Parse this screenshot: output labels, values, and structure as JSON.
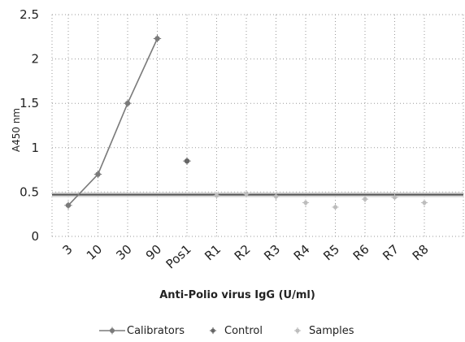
{
  "chart_data": {
    "type": "scatter",
    "categories": [
      "3",
      "10",
      "30",
      "90",
      "Pos1",
      "R1",
      "R2",
      "R3",
      "R4",
      "R5",
      "R6",
      "R7",
      "R8"
    ],
    "ylabel": "A450 nm",
    "xlabel": "Anti-Polio virus IgG (U/ml)",
    "ylim": [
      0,
      2.5
    ],
    "yticks": [
      "0",
      "0.5",
      "1",
      "1.5",
      "2",
      "2.5"
    ],
    "grid": true,
    "legend_position": "bottom",
    "cutoff": 0.47,
    "series": [
      {
        "name": "Calibrators",
        "style": "line-marker",
        "color": "#7a7a7a",
        "points": [
          {
            "x": "3",
            "y": 0.35
          },
          {
            "x": "10",
            "y": 0.7
          },
          {
            "x": "30",
            "y": 1.5
          },
          {
            "x": "90",
            "y": 2.23
          }
        ]
      },
      {
        "name": "Control",
        "style": "marker",
        "color": "#666666",
        "points": [
          {
            "x": "Pos1",
            "y": 0.85
          }
        ]
      },
      {
        "name": "Samples",
        "style": "marker",
        "color": "#bdbdbd",
        "points": [
          {
            "x": "R1",
            "y": 0.46
          },
          {
            "x": "R2",
            "y": 0.48
          },
          {
            "x": "R3",
            "y": 0.45
          },
          {
            "x": "R4",
            "y": 0.38
          },
          {
            "x": "R5",
            "y": 0.33
          },
          {
            "x": "R6",
            "y": 0.42
          },
          {
            "x": "R7",
            "y": 0.44
          },
          {
            "x": "R8",
            "y": 0.38
          }
        ]
      }
    ]
  }
}
